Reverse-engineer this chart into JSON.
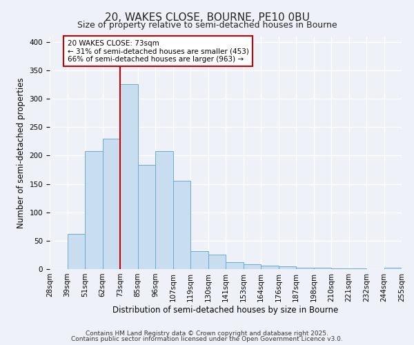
{
  "title": "20, WAKES CLOSE, BOURNE, PE10 0BU",
  "subtitle": "Size of property relative to semi-detached houses in Bourne",
  "xlabel": "Distribution of semi-detached houses by size in Bourne",
  "ylabel": "Number of semi-detached properties",
  "bin_labels": [
    "28sqm",
    "39sqm",
    "51sqm",
    "62sqm",
    "73sqm",
    "85sqm",
    "96sqm",
    "107sqm",
    "119sqm",
    "130sqm",
    "141sqm",
    "153sqm",
    "164sqm",
    "176sqm",
    "187sqm",
    "198sqm",
    "210sqm",
    "221sqm",
    "232sqm",
    "244sqm",
    "255sqm"
  ],
  "bar_values": [
    0,
    62,
    208,
    230,
    325,
    183,
    208,
    155,
    31,
    25,
    12,
    8,
    6,
    5,
    2,
    2,
    1,
    1,
    0,
    2
  ],
  "bar_color": "#c9ddf0",
  "bar_edge_color": "#6aaad4",
  "annotation_box_text": "20 WAKES CLOSE: 73sqm\n← 31% of semi-detached houses are smaller (453)\n66% of semi-detached houses are larger (963) →",
  "red_line_color": "#cc0000",
  "ylim": [
    0,
    410
  ],
  "yticks": [
    0,
    50,
    100,
    150,
    200,
    250,
    300,
    350,
    400
  ],
  "footnote1": "Contains HM Land Registry data © Crown copyright and database right 2025.",
  "footnote2": "Contains public sector information licensed under the Open Government Licence v3.0.",
  "background_color": "#eef2f8",
  "plot_bg_color": "#eef2f8",
  "title_fontsize": 11,
  "subtitle_fontsize": 9,
  "axis_label_fontsize": 8.5,
  "tick_fontsize": 7.5,
  "footnote_fontsize": 6.5,
  "annotation_fontsize": 7.5
}
